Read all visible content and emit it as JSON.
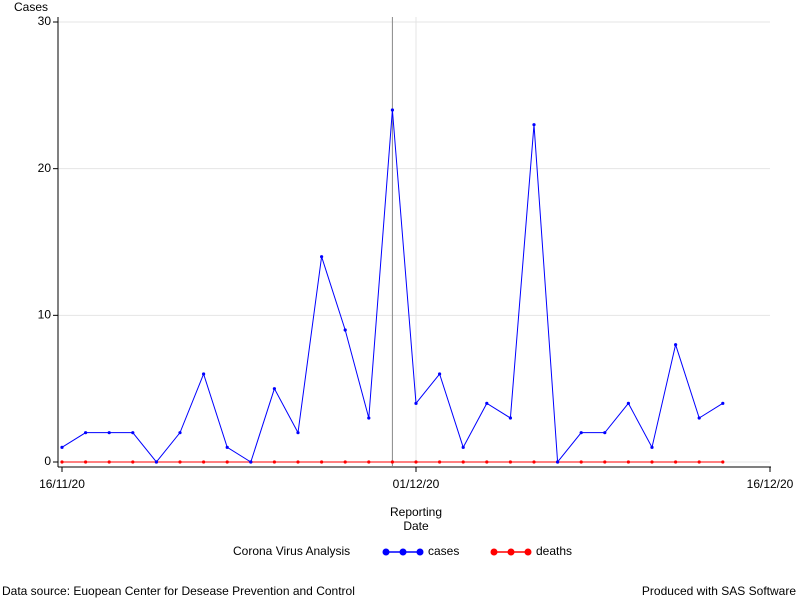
{
  "chart_data": {
    "type": "line",
    "y_label": "Cases",
    "x_label": "Reporting Date",
    "legend_title": "Corona Virus Analysis",
    "x": [
      "2020-11-16",
      "2020-11-17",
      "2020-11-18",
      "2020-11-19",
      "2020-11-20",
      "2020-11-21",
      "2020-11-22",
      "2020-11-23",
      "2020-11-24",
      "2020-11-25",
      "2020-11-26",
      "2020-11-27",
      "2020-11-28",
      "2020-11-29",
      "2020-11-30",
      "2020-12-01",
      "2020-12-02",
      "2020-12-03",
      "2020-12-04",
      "2020-12-05",
      "2020-12-06",
      "2020-12-07",
      "2020-12-08",
      "2020-12-09",
      "2020-12-10",
      "2020-12-11",
      "2020-12-12",
      "2020-12-13",
      "2020-12-14"
    ],
    "series": [
      {
        "name": "cases",
        "color": "#0000ff",
        "values": [
          1,
          2,
          2,
          2,
          0,
          2,
          6,
          1,
          0,
          5,
          2,
          14,
          9,
          3,
          24,
          4,
          6,
          1,
          4,
          3,
          23,
          0,
          2,
          2,
          4,
          1,
          8,
          3,
          4
        ]
      },
      {
        "name": "deaths",
        "color": "#ff0000",
        "values": [
          0,
          0,
          0,
          0,
          0,
          0,
          0,
          0,
          0,
          0,
          0,
          0,
          0,
          0,
          0,
          0,
          0,
          0,
          0,
          0,
          0,
          0,
          0,
          0,
          0,
          0,
          0,
          0,
          0
        ]
      }
    ],
    "xlim": [
      "2020-11-16",
      "2020-12-16"
    ],
    "xticks": [
      {
        "value": "2020-11-16",
        "label": "16/11/20"
      },
      {
        "value": "2020-12-01",
        "label": "01/12/20"
      },
      {
        "value": "2020-12-16",
        "label": "16/12/20"
      }
    ],
    "ylim": [
      0,
      30
    ],
    "yticks": [
      0,
      10,
      20,
      30
    ],
    "grid": true,
    "reference_x": "2020-11-30",
    "footnote_left": "Data source: Euopean Center for Desease Prevention and Control",
    "footnote_right": "Produced with SAS Software"
  }
}
